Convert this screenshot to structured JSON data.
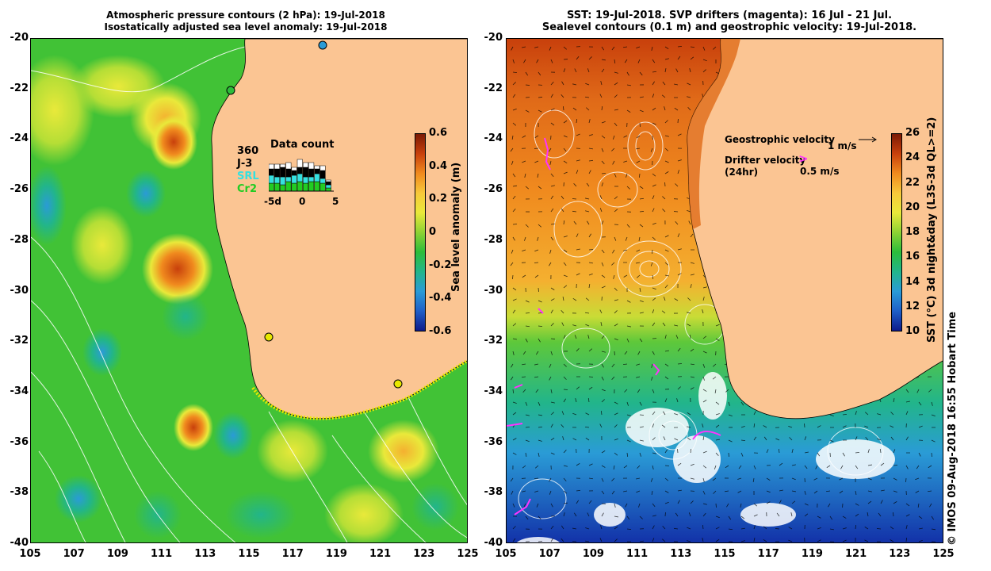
{
  "left_title": {
    "line1": "Atmospheric pressure contours (2 hPa): 19-Jul-2018",
    "line2": "Isostatically adjusted sea level anomaly: 19-Jul-2018"
  },
  "right_title": {
    "line1": "SST: 19-Jul-2018. SVP drifters (magenta): 16 Jul - 21 Jul.",
    "line2": "Sealevel contours (0.1 m) and geostrophic velocity: 19-Jul-2018."
  },
  "axes": {
    "y_ticks": [
      "-20",
      "-22",
      "-24",
      "-26",
      "-28",
      "-30",
      "-32",
      "-34",
      "-36",
      "-38",
      "-40"
    ],
    "x_ticks": [
      "105",
      "107",
      "109",
      "111",
      "113",
      "115",
      "117",
      "119",
      "121",
      "123",
      "125"
    ],
    "lon_range": [
      105,
      125
    ],
    "lat_range": [
      -40,
      -20
    ]
  },
  "left_colorbar": {
    "label": "Sea level anomaly (m)",
    "ticks": [
      "0.6",
      "0.4",
      "0.2",
      "0",
      "-0.2",
      "-0.4",
      "-0.6"
    ],
    "colors": [
      "#7b1a05",
      "#c8400c",
      "#f08a1e",
      "#f7c83a",
      "#e9e93a",
      "#8ed234",
      "#2cbd3a",
      "#22b58a",
      "#2a9bd6",
      "#1f5fc8",
      "#0d1a8a"
    ]
  },
  "right_colorbar": {
    "label": "SST (°C) 3d night&day (L3S-3d QL>=2)",
    "ticks": [
      "26",
      "24",
      "22",
      "20",
      "18",
      "16",
      "14",
      "12",
      "10"
    ],
    "colors": [
      "#7b1a05",
      "#c8400c",
      "#f08a1e",
      "#f7c83a",
      "#e9e93a",
      "#8ed234",
      "#2cbd3a",
      "#22b58a",
      "#2a9bd6",
      "#1f5fc8",
      "#0d1a8a"
    ]
  },
  "data_count": {
    "title": "Data count",
    "series": [
      "360",
      "J-3",
      "SRL",
      "Cr2"
    ],
    "series_colors": [
      "#000000",
      "#000000",
      "#35e0e0",
      "#22cc22"
    ],
    "x_labels": [
      "-5d",
      "0",
      "5"
    ]
  },
  "legend": {
    "geostrophic": "Geostrophic velocity",
    "geostrophic_scale": "1 m/s",
    "drifter": "Drifter velocity",
    "drifter_sub": "(24hr)",
    "drifter_scale": "0.5 m/s",
    "drifter_color": "#ff33ff"
  },
  "credit": "© IMOS 09-Aug-2018 16:55 Hobart Time",
  "colors": {
    "land": "#fbc593",
    "contour": "#ffffff",
    "tide_gauge": "#e8e800"
  }
}
